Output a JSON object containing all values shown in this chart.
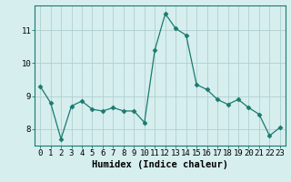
{
  "x": [
    0,
    1,
    2,
    3,
    4,
    5,
    6,
    7,
    8,
    9,
    10,
    11,
    12,
    13,
    14,
    15,
    16,
    17,
    18,
    19,
    20,
    21,
    22,
    23
  ],
  "y": [
    9.3,
    8.8,
    7.7,
    8.7,
    8.85,
    8.6,
    8.55,
    8.65,
    8.55,
    8.55,
    8.2,
    10.4,
    11.5,
    11.05,
    10.85,
    9.35,
    9.2,
    8.9,
    8.75,
    8.9,
    8.65,
    8.45,
    7.8,
    8.05
  ],
  "xlabel": "Humidex (Indice chaleur)",
  "ylim": [
    7.5,
    11.75
  ],
  "yticks": [
    8,
    9,
    10,
    11
  ],
  "xticks": [
    0,
    1,
    2,
    3,
    4,
    5,
    6,
    7,
    8,
    9,
    10,
    11,
    12,
    13,
    14,
    15,
    16,
    17,
    18,
    19,
    20,
    21,
    22,
    23
  ],
  "line_color": "#1a7a6e",
  "marker": "D",
  "marker_size": 2.5,
  "bg_color": "#d6eeee",
  "grid_color": "#b0d0d0",
  "tick_label_fontsize": 6.5,
  "xlabel_fontsize": 7.5
}
